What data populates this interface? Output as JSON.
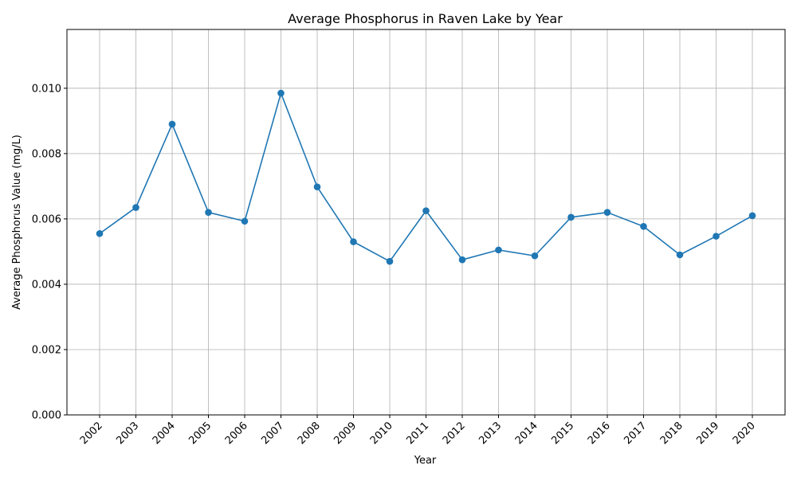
{
  "chart_data": {
    "type": "line",
    "title": "Average Phosphorus in Raven Lake by Year",
    "xlabel": "Year",
    "ylabel": "Average Phosphorus Value (mg/L)",
    "x": [
      "2002",
      "2003",
      "2004",
      "2005",
      "2006",
      "2007",
      "2008",
      "2009",
      "2010",
      "2011",
      "2012",
      "2013",
      "2014",
      "2015",
      "2016",
      "2017",
      "2018",
      "2019",
      "2020"
    ],
    "series": [
      {
        "values": [
          0.00555,
          0.00635,
          0.0089,
          0.0062,
          0.00593,
          0.00985,
          0.00698,
          0.0053,
          0.0047,
          0.00625,
          0.00475,
          0.00505,
          0.00487,
          0.00605,
          0.0062,
          0.00577,
          0.0049,
          0.00547,
          0.0061
        ],
        "color": "#1f77b4",
        "marker": "circle"
      }
    ],
    "ylim": [
      0,
      0.0118
    ],
    "yticks": [
      "0.000",
      "0.002",
      "0.004",
      "0.006",
      "0.008",
      "0.010"
    ],
    "grid": true,
    "legend": "none"
  }
}
